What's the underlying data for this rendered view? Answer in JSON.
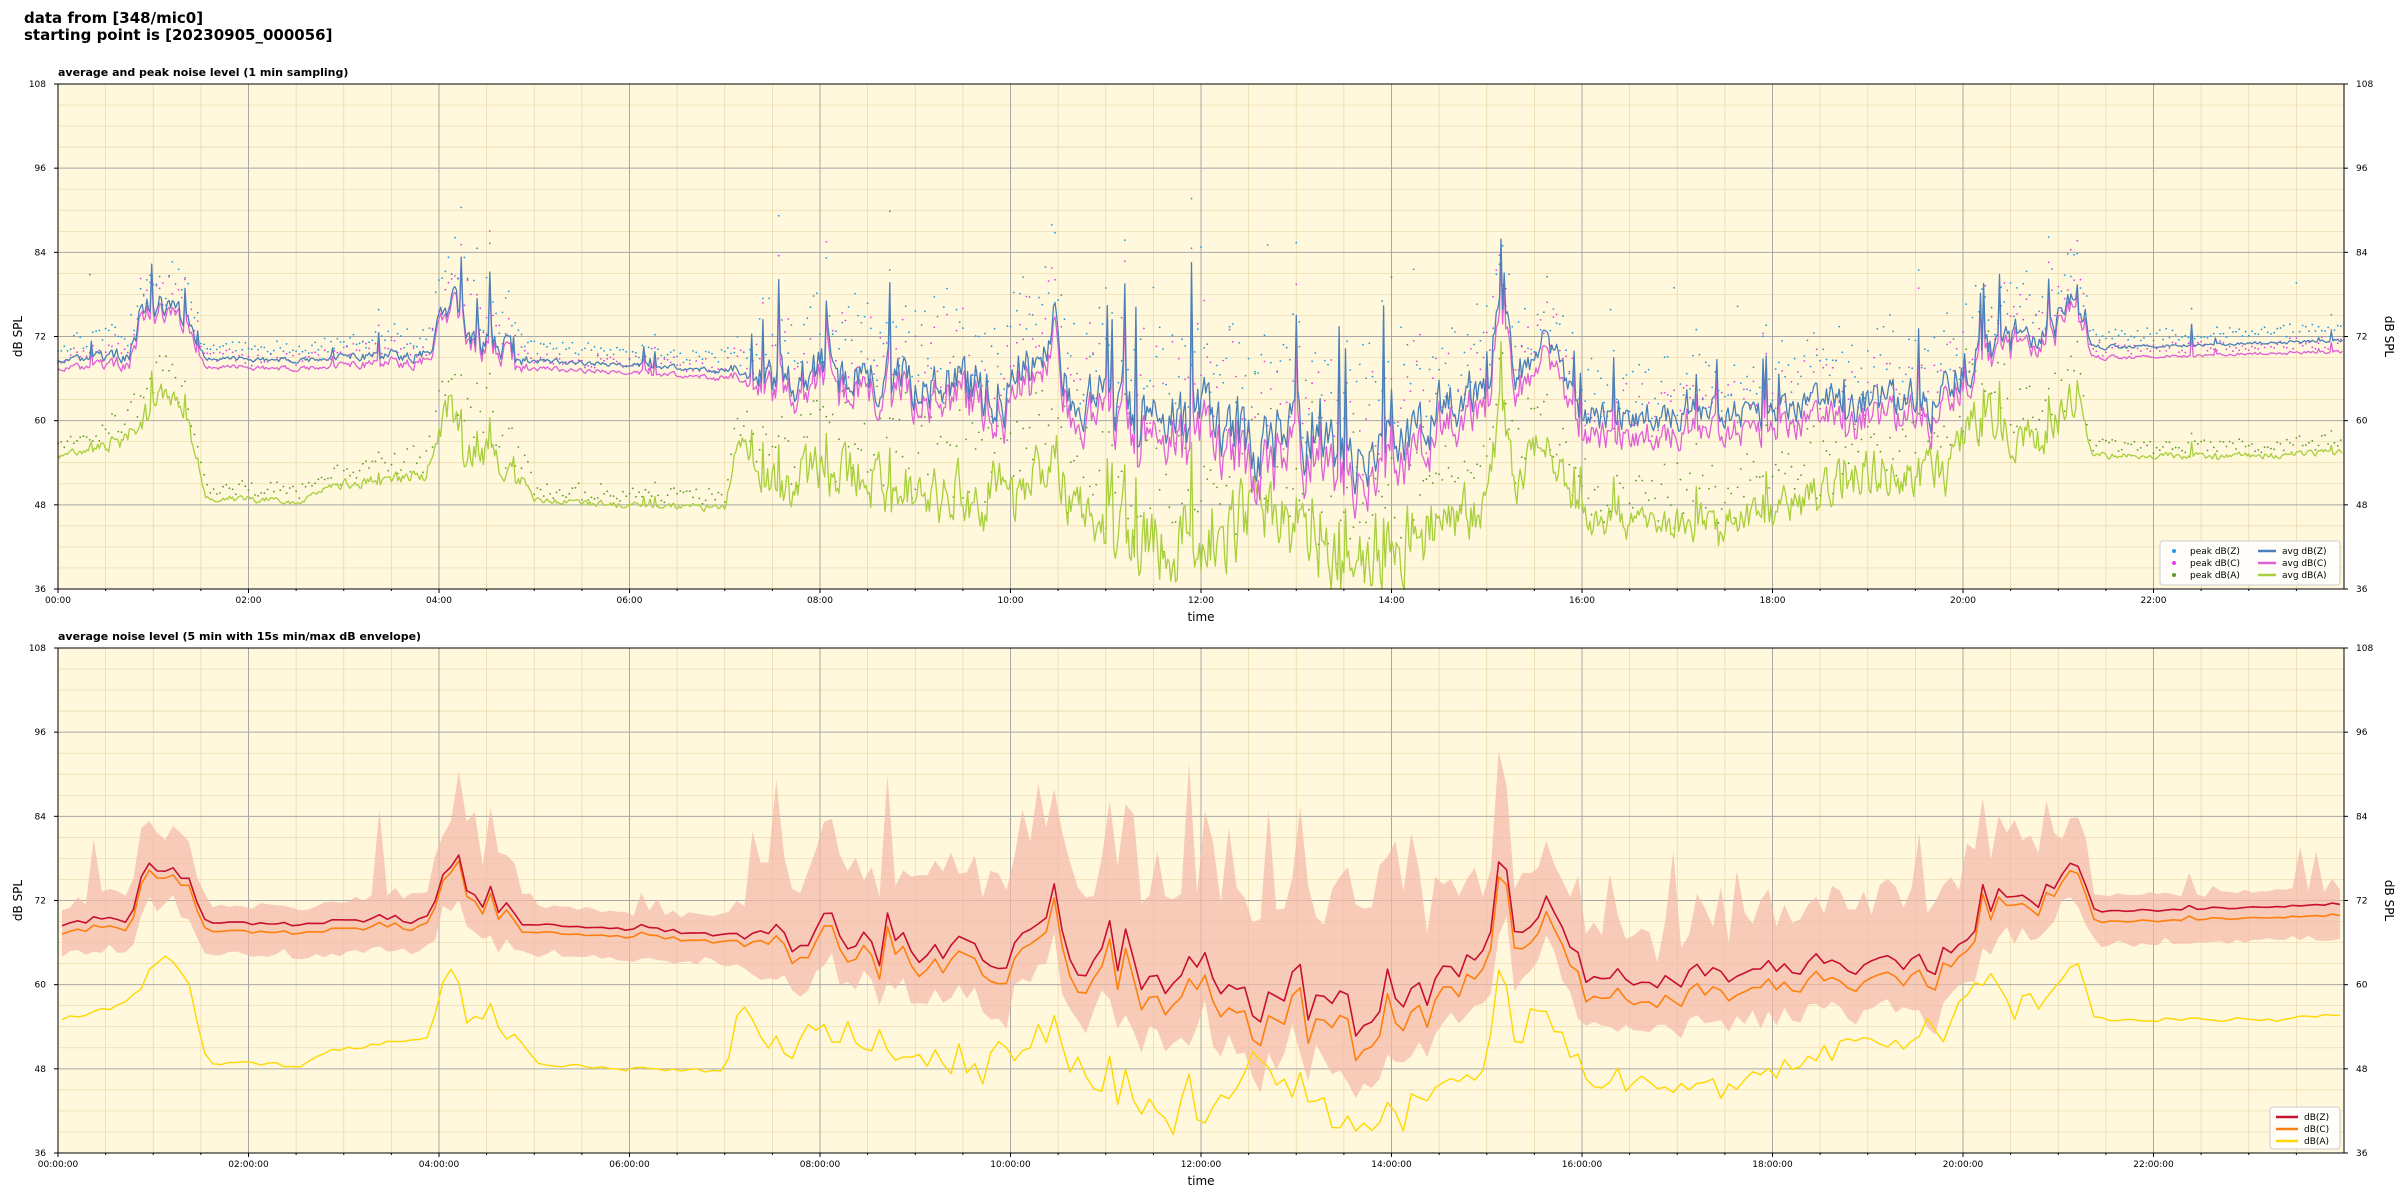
{
  "header": {
    "line1": "data from [348/mic0]",
    "line2": "starting point is [20230905_000056]"
  },
  "chart_data": [
    {
      "type": "line",
      "title": "average and peak noise level (1 min sampling)",
      "xlabel": "time",
      "ylabel": "dB SPL",
      "ylim": [
        36,
        108
      ],
      "y_ticks": [
        "36",
        "48",
        "60",
        "72",
        "84",
        "96",
        "108"
      ],
      "x_range_hours": [
        0,
        24
      ],
      "x_ticks": [
        "00:00",
        "02:00",
        "04:00",
        "06:00",
        "08:00",
        "10:00",
        "12:00",
        "14:00",
        "16:00",
        "18:00",
        "20:00",
        "22:00"
      ],
      "grid": true,
      "legend_position": "bottom-right",
      "series": [
        {
          "name": "peak dB(Z)",
          "kind": "points",
          "color": "#1f9bdd"
        },
        {
          "name": "peak dB(C)",
          "kind": "points",
          "color": "#e040e0"
        },
        {
          "name": "peak dB(A)",
          "kind": "points",
          "color": "#5a9a2a"
        },
        {
          "name": "avg dB(Z)",
          "kind": "line",
          "color": "#4a7fb8"
        },
        {
          "name": "avg dB(C)",
          "kind": "line",
          "color": "#e060d8"
        },
        {
          "name": "avg dB(A)",
          "kind": "line",
          "color": "#a8cf3c"
        }
      ],
      "profile": {
        "hours": [
          0,
          0.4,
          0.75,
          0.9,
          1.15,
          1.35,
          1.55,
          2.5,
          3.0,
          3.85,
          4.1,
          4.25,
          4.5,
          4.75,
          5.0,
          6.0,
          7.0,
          7.15,
          7.5,
          8.0,
          9.0,
          10.0,
          10.45,
          10.6,
          11.0,
          11.5,
          12.0,
          12.5,
          13.0,
          13.5,
          14.0,
          14.5,
          15.0,
          15.15,
          15.3,
          15.6,
          16.0,
          17.0,
          18.0,
          19.0,
          19.8,
          20.0,
          20.3,
          20.8,
          21.2,
          21.35,
          22.0,
          23.0,
          24.0
        ],
        "z_avg": [
          68.5,
          69.0,
          70.0,
          76.0,
          76.5,
          74.0,
          69.0,
          68.5,
          69.0,
          69.5,
          76.0,
          75.0,
          71.0,
          70.0,
          68.5,
          68.0,
          67.0,
          67.5,
          66.0,
          66.5,
          66.0,
          64.0,
          75.0,
          63.0,
          62.0,
          60.0,
          59.0,
          57.0,
          58.0,
          56.0,
          56.5,
          62.0,
          65.0,
          80.0,
          66.0,
          72.0,
          60.5,
          61.0,
          61.5,
          62.5,
          63.0,
          68.0,
          71.0,
          72.0,
          77.0,
          70.5,
          70.6,
          71.0,
          71.5
        ],
        "c_offset": [
          -1.2,
          -1.2,
          -1.2,
          -1.0,
          -1.0,
          -1.0,
          -1.2,
          -1.2,
          -1.2,
          -1.0,
          -0.8,
          -0.8,
          -1.0,
          -1.0,
          -1.1,
          -1.1,
          -1.0,
          -1.0,
          -1.6,
          -1.8,
          -2.0,
          -2.2,
          -2.0,
          -2.4,
          -2.6,
          -3.0,
          -3.2,
          -3.4,
          -3.3,
          -3.5,
          -3.5,
          -3.0,
          -2.6,
          -2.0,
          -2.4,
          -2.2,
          -2.8,
          -2.8,
          -2.6,
          -2.4,
          -2.2,
          -1.6,
          -1.2,
          -1.2,
          -1.0,
          -1.5,
          -1.5,
          -1.5,
          -1.6
        ],
        "a_avg": [
          55.0,
          56.0,
          58.0,
          60.0,
          64.0,
          60.0,
          49.0,
          48.5,
          51.0,
          52.0,
          62.0,
          58.0,
          55.0,
          54.0,
          48.5,
          48.0,
          47.5,
          58.0,
          50.0,
          52.0,
          50.5,
          49.0,
          58.0,
          48.0,
          45.0,
          43.0,
          44.0,
          46.0,
          45.0,
          42.0,
          42.5,
          45.0,
          48.0,
          62.0,
          50.0,
          58.0,
          46.0,
          45.0,
          46.5,
          53.0,
          52.0,
          58.0,
          60.0,
          57.0,
          64.0,
          55.0,
          55.0,
          55.0,
          55.5
        ],
        "variability": [
          0.3,
          0.6,
          1.2,
          1.5,
          1.5,
          1.0,
          0.3,
          0.3,
          0.5,
          0.8,
          1.8,
          2.5,
          2.0,
          1.5,
          0.3,
          0.3,
          0.4,
          1.0,
          2.5,
          3.0,
          3.2,
          3.5,
          3.5,
          3.0,
          3.5,
          4.0,
          4.5,
          4.5,
          4.0,
          4.5,
          4.5,
          3.5,
          2.5,
          2.5,
          2.0,
          2.0,
          1.8,
          1.8,
          2.0,
          2.5,
          2.8,
          3.0,
          2.5,
          2.0,
          2.0,
          0.3,
          0.2,
          0.2,
          0.2
        ]
      }
    },
    {
      "type": "line",
      "title": "average noise level (5 min with 15s min/max dB envelope)",
      "xlabel": "time",
      "ylabel": "dB SPL",
      "ylim": [
        36,
        108
      ],
      "y_ticks": [
        "36",
        "48",
        "60",
        "72",
        "84",
        "96",
        "108"
      ],
      "x_range_hours": [
        0,
        24
      ],
      "x_ticks": [
        "00:00:00",
        "02:00:00",
        "04:00:00",
        "06:00:00",
        "08:00:00",
        "10:00:00",
        "12:00:00",
        "14:00:00",
        "16:00:00",
        "18:00:00",
        "20:00:00",
        "22:00:00"
      ],
      "grid": true,
      "legend_position": "bottom-right",
      "series": [
        {
          "name": "dB(Z)",
          "kind": "line",
          "color": "#c8102e"
        },
        {
          "name": "dB(C)",
          "kind": "line",
          "color": "#ff7f0e"
        },
        {
          "name": "dB(A)",
          "kind": "line",
          "color": "#ffd700"
        }
      ],
      "envelope_color": "#f4b8a8"
    }
  ]
}
